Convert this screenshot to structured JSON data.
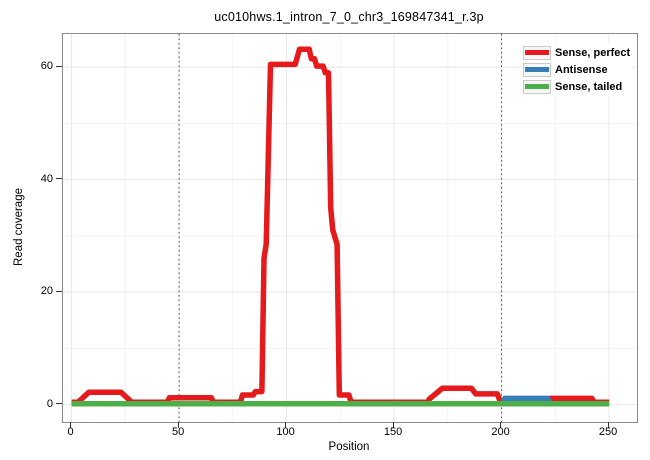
{
  "chart_data": {
    "type": "line",
    "title": "uc010hws.1_intron_7_0_chr3_169847341_r.3p",
    "xlabel": "Position",
    "ylabel": "Read coverage",
    "xlim": [
      -4,
      263
    ],
    "ylim": [
      -3.1,
      65.9
    ],
    "x_ticks": [
      0,
      50,
      100,
      150,
      200,
      250
    ],
    "y_ticks": [
      0,
      20,
      40,
      60
    ],
    "x_minor_ticks": [
      25,
      75,
      125,
      175,
      225
    ],
    "y_minor_ticks": [
      10,
      30,
      50
    ],
    "grid": true,
    "legend_position": "top-right-inside",
    "vlines": {
      "positions": [
        50,
        200
      ],
      "style": "dotted",
      "color": "#4d4d4d"
    },
    "series": [
      {
        "name": "Sense, perfect",
        "color": "#E41A1C",
        "points": [
          [
            0,
            0.4
          ],
          [
            3,
            0.4
          ],
          [
            8,
            2.2
          ],
          [
            23,
            2.2
          ],
          [
            28,
            0.4
          ],
          [
            44.5,
            0.4
          ],
          [
            45.5,
            1.2
          ],
          [
            65,
            1.2
          ],
          [
            66,
            0.4
          ],
          [
            78.5,
            0.4
          ],
          [
            79.5,
            1.7
          ],
          [
            84.5,
            1.7
          ],
          [
            85.5,
            2.3
          ],
          [
            88.5,
            2.3
          ],
          [
            89.5,
            26
          ],
          [
            90.5,
            28.5
          ],
          [
            92.5,
            60.5
          ],
          [
            104,
            60.5
          ],
          [
            106,
            63.2
          ],
          [
            110.5,
            63.2
          ],
          [
            111.5,
            61.5
          ],
          [
            113,
            61.5
          ],
          [
            114,
            60.2
          ],
          [
            117,
            60.2
          ],
          [
            118,
            59
          ],
          [
            119.5,
            59
          ],
          [
            120.5,
            35
          ],
          [
            121.5,
            31
          ],
          [
            123.5,
            28.5
          ],
          [
            124.5,
            1.7
          ],
          [
            129,
            1.7
          ],
          [
            130,
            0.4
          ],
          [
            165.5,
            0.4
          ],
          [
            166.5,
            1
          ],
          [
            172.5,
            2.9
          ],
          [
            186,
            2.9
          ],
          [
            188,
            1.9
          ],
          [
            198,
            1.9
          ],
          [
            199.5,
            0.4
          ],
          [
            221.5,
            0.4
          ],
          [
            222.5,
            1.1
          ],
          [
            242,
            1.1
          ],
          [
            243,
            0.4
          ],
          [
            250,
            0.4
          ]
        ]
      },
      {
        "name": "Antisense",
        "color": "#377EB8",
        "points": [
          [
            0,
            0.15
          ],
          [
            200.5,
            0.15
          ],
          [
            201.5,
            1.1
          ],
          [
            221.5,
            1.1
          ],
          [
            222.5,
            0.15
          ],
          [
            250,
            0.15
          ]
        ]
      },
      {
        "name": "Sense, tailed",
        "color": "#4DAF4A",
        "points": [
          [
            0,
            0.15
          ],
          [
            250,
            0.15
          ]
        ]
      }
    ],
    "grid_major_color": "#e7e7e7",
    "grid_minor_color": "#f3f3f3",
    "line_width": 5.5
  }
}
